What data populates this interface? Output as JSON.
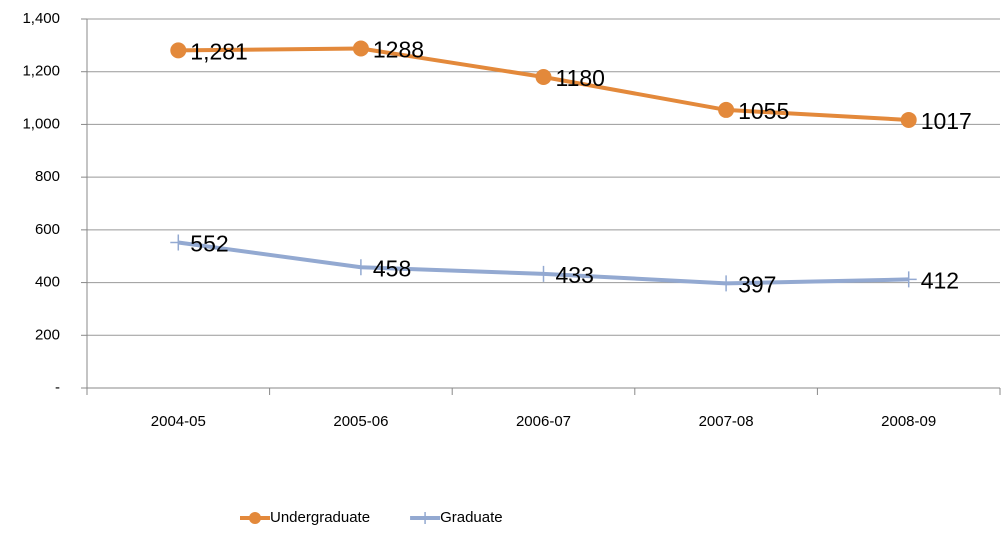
{
  "chart_data": {
    "type": "line",
    "categories": [
      "2004-05",
      "2005-06",
      "2006-07",
      "2007-08",
      "2008-09"
    ],
    "series": [
      {
        "name": "Undergraduate",
        "color": "#e3893b",
        "values": [
          1281,
          1288,
          1180,
          1055,
          1017
        ],
        "value_labels": [
          "1,281",
          "1288",
          "1180",
          "1055",
          "1017"
        ]
      },
      {
        "name": "Graduate",
        "color": "#93a9d1",
        "values": [
          552,
          458,
          433,
          397,
          412
        ]
      }
    ],
    "ylim": [
      0,
      1400
    ],
    "yticks": [
      {
        "value": 0,
        "label": "-"
      },
      200,
      400,
      600,
      800,
      {
        "value": 1000,
        "label": "1,000"
      },
      {
        "value": 1200,
        "label": "1,200"
      },
      {
        "value": 1400,
        "label": "1,400"
      }
    ],
    "grid": true,
    "legend": "bottom"
  }
}
